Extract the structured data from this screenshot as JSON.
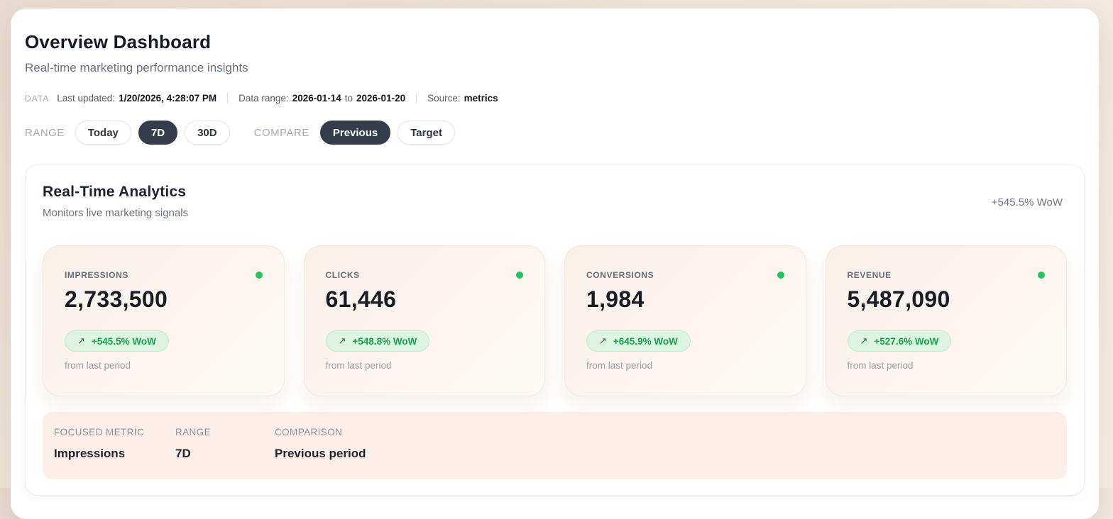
{
  "page": {
    "title": "Overview Dashboard",
    "subtitle": "Real-time marketing performance insights"
  },
  "meta": {
    "data_label": "DATA",
    "last_updated_label": "Last updated:",
    "last_updated_value": "1/20/2026, 4:28:07 PM",
    "data_range_label": "Data range:",
    "data_range_start": "2026-01-14",
    "data_range_to": "to",
    "data_range_end": "2026-01-20",
    "source_label": "Source:",
    "source_value": "metrics"
  },
  "controls": {
    "range_label": "RANGE",
    "range_options": [
      {
        "label": "Today",
        "selected": false
      },
      {
        "label": "7D",
        "selected": true
      },
      {
        "label": "30D",
        "selected": false
      }
    ],
    "compare_label": "COMPARE",
    "compare_options": [
      {
        "label": "Previous",
        "selected": true
      },
      {
        "label": "Target",
        "selected": false
      }
    ]
  },
  "analytics": {
    "title": "Real-Time Analytics",
    "subtitle": "Monitors live marketing signals",
    "wow_summary": "+545.5% WoW",
    "arrow_icon": "↗",
    "metrics": [
      {
        "label": "IMPRESSIONS",
        "value": "2,733,500",
        "change": "+545.5% WoW",
        "sub": "from last period"
      },
      {
        "label": "CLICKS",
        "value": "61,446",
        "change": "+548.8% WoW",
        "sub": "from last period"
      },
      {
        "label": "CONVERSIONS",
        "value": "1,984",
        "change": "+645.9% WoW",
        "sub": "from last period"
      },
      {
        "label": "REVENUE",
        "value": "5,487,090",
        "change": "+527.6% WoW",
        "sub": "from last period"
      }
    ]
  },
  "focus": {
    "columns": [
      {
        "label": "FOCUSED METRIC",
        "value": "Impressions"
      },
      {
        "label": "RANGE",
        "value": "7D"
      },
      {
        "label": "COMPARISON",
        "value": "Previous period"
      }
    ]
  },
  "colors": {
    "accent_dark": "#333d4c",
    "positive_green": "#16a34a",
    "live_dot_green": "#22c55e",
    "badge_bg": "#dcf4e1",
    "badge_border": "#c3ecce",
    "card_cream": "#f9f1e8",
    "strip_peach": "#fcefe7"
  }
}
